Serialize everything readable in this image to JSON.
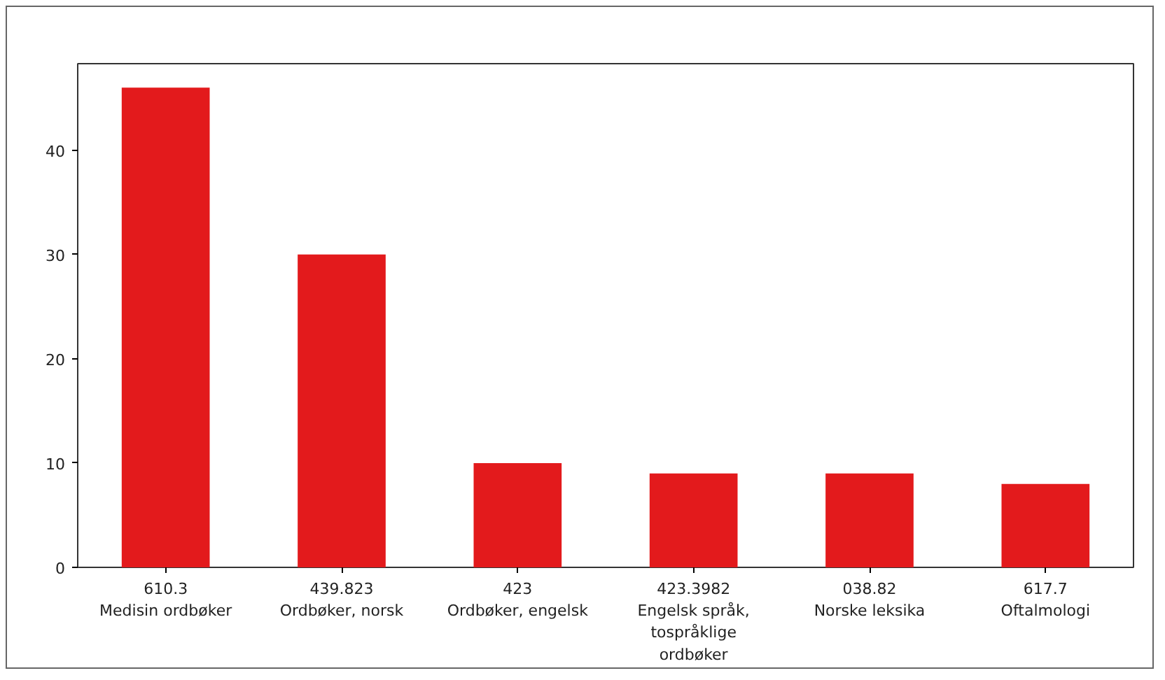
{
  "chart_data": {
    "type": "bar",
    "categories": [
      "610.3\nMedisin ordbøker",
      "439.823\nOrdbøker, norsk",
      "423\nOrdbøker, engelsk",
      "423.3982\nEngelsk språk,\ntospråklige\nordbøker",
      "038.82\nNorske leksika",
      "617.7\nOftalmologi"
    ],
    "values": [
      46,
      30,
      10,
      9,
      9,
      8
    ],
    "color": "#e31a1c",
    "ylim": [
      0,
      48.3
    ],
    "yticks": [
      0,
      10,
      20,
      30,
      40
    ],
    "grid": false
  }
}
